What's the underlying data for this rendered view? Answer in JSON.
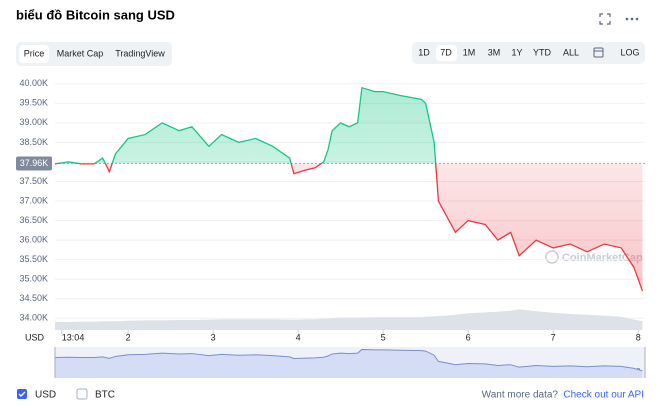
{
  "title": "biểu đồ Bitcoin sang USD",
  "tabs": [
    "Price",
    "Market Cap",
    "TradingView"
  ],
  "ranges": [
    "1D",
    "7D",
    "1M",
    "3M",
    "1Y",
    "YTD",
    "ALL",
    "LOG"
  ],
  "footer": {
    "currency_other": "BTC",
    "prompt": "Want more data?",
    "link": "Check out our API",
    "watermark": "CoinMarketCap"
  },
  "chart_data": {
    "type": "line",
    "y_axis_label": "USD",
    "baseline": {
      "value": 37960,
      "label": "37.96K"
    },
    "x": [
      1.14,
      1.3,
      1.45,
      1.6,
      1.7,
      1.78,
      1.85,
      2.0,
      2.2,
      2.4,
      2.6,
      2.75,
      2.95,
      3.1,
      3.3,
      3.5,
      3.7,
      3.9,
      3.95,
      4.1,
      4.2,
      4.3,
      4.35,
      4.4,
      4.5,
      4.6,
      4.7,
      4.75,
      4.9,
      5.0,
      5.2,
      5.45,
      5.5,
      5.6,
      5.65,
      5.75,
      5.85,
      6.0,
      6.2,
      6.35,
      6.5,
      6.6,
      6.8,
      7.0,
      7.2,
      7.4,
      7.6,
      7.8,
      7.95,
      8.05
    ],
    "series": [
      {
        "name": "USD",
        "color": "#16c784",
        "down_color": "#ea3943",
        "values": [
          37950,
          38000,
          37950,
          37950,
          38100,
          37750,
          38200,
          38600,
          38700,
          39000,
          38800,
          38900,
          38400,
          38700,
          38500,
          38600,
          38400,
          38100,
          37700,
          37800,
          37850,
          38000,
          38300,
          38800,
          39000,
          38900,
          39000,
          39900,
          39800,
          39800,
          39700,
          39600,
          39500,
          38500,
          37000,
          36600,
          36200,
          36500,
          36400,
          36000,
          36200,
          35600,
          36000,
          35800,
          35900,
          35700,
          35900,
          35800,
          35300,
          34700
        ]
      }
    ],
    "volume": {
      "color": "#dde1e8",
      "ylim": [
        0,
        100
      ],
      "values": [
        20,
        20,
        21,
        21,
        22,
        22,
        22,
        23,
        24,
        24,
        25,
        25,
        26,
        27,
        27,
        27,
        27,
        26,
        26,
        27,
        27,
        28,
        28,
        30,
        31,
        31,
        31,
        31,
        32,
        32,
        32,
        32,
        33,
        34,
        35,
        36,
        38,
        42,
        44,
        46,
        48,
        52,
        47,
        43,
        40,
        38,
        36,
        33,
        26,
        22
      ]
    },
    "xlim": [
      1.14,
      8.08
    ],
    "xticks": [
      {
        "value": 1.22,
        "label": "13:04"
      },
      2,
      3,
      4,
      5,
      6,
      7,
      8
    ],
    "ylim": [
      33700,
      40250
    ],
    "yticks": [
      {
        "value": 34000,
        "label": "34.00K"
      },
      {
        "value": 34500,
        "label": "34.50K"
      },
      {
        "value": 35000,
        "label": "35.00K"
      },
      {
        "value": 35500,
        "label": "35.50K"
      },
      {
        "value": 36000,
        "label": "36.00K"
      },
      {
        "value": 36500,
        "label": "36.50K"
      },
      {
        "value": 37000,
        "label": "37.00K"
      },
      {
        "value": 37500,
        "label": "37.50K"
      },
      {
        "value": 38000,
        "label": "38.00K"
      },
      {
        "value": 38500,
        "label": "38.50K"
      },
      {
        "value": 39000,
        "label": "39.00K"
      },
      {
        "value": 39500,
        "label": "39.50K"
      },
      {
        "value": 40000,
        "label": "40.00K"
      }
    ],
    "grid": true
  }
}
